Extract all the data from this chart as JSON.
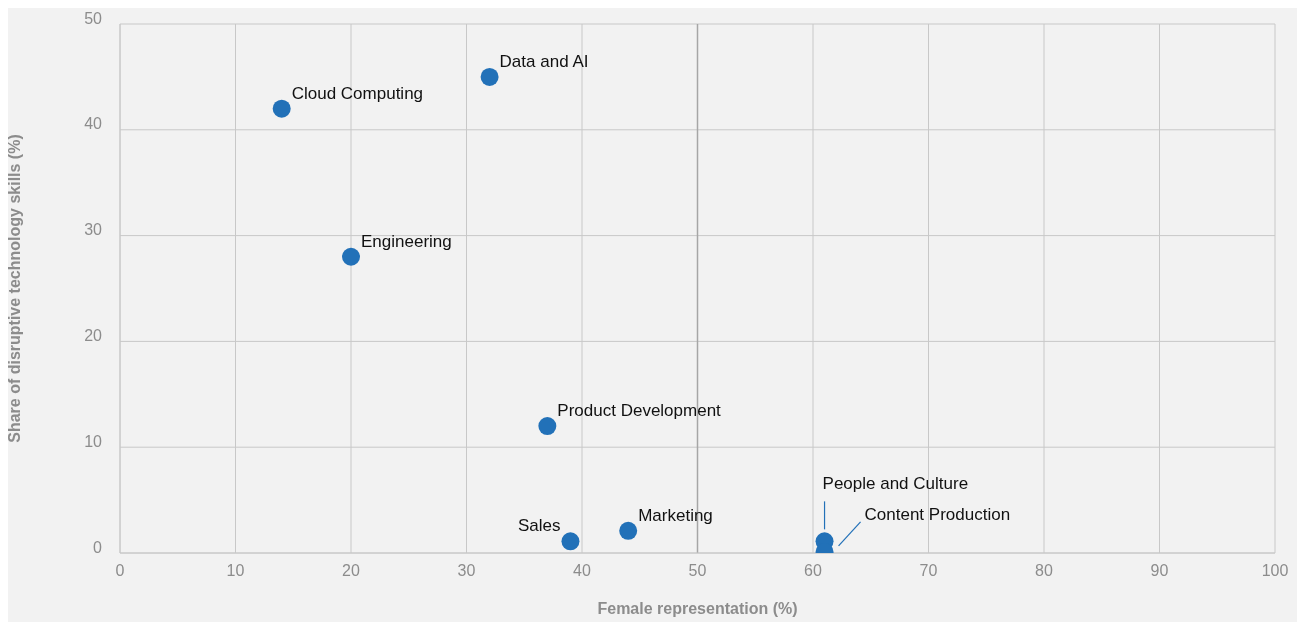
{
  "chart_data": {
    "type": "scatter",
    "xlabel": "Female representation (%)",
    "ylabel": "Share of disruptive technology skills (%)",
    "x": [
      14,
      32,
      20,
      37,
      39,
      44,
      61,
      61
    ],
    "series": [
      {
        "color": "#2271b8",
        "values": [
          42,
          45,
          28,
          12,
          1.1,
          2.1,
          1.1,
          0.1
        ]
      }
    ],
    "xlim": [
      0,
      100
    ],
    "xticks": [
      0,
      10,
      20,
      30,
      40,
      50,
      60,
      70,
      80,
      90,
      100
    ],
    "ylim": [
      0,
      50
    ],
    "yticks": [
      0,
      10,
      20,
      30,
      40,
      50
    ],
    "grid": true,
    "marker": "circle",
    "legend": false,
    "ref_lines": [
      {
        "axis": "x",
        "value": 50,
        "color": "#a6a6a6"
      }
    ],
    "annotations": [
      {
        "text": "Cloud Computing",
        "x": 14,
        "y": 42
      },
      {
        "text": "Data and AI",
        "x": 32,
        "y": 45
      },
      {
        "text": "Engineering",
        "x": 20,
        "y": 28
      },
      {
        "text": "Product Development",
        "x": 37,
        "y": 12
      },
      {
        "text": "Sales",
        "x": 39,
        "y": 1.1
      },
      {
        "text": "Marketing",
        "x": 44,
        "y": 2.1
      },
      {
        "text": "People and Culture",
        "x": 61,
        "y": 1.1
      },
      {
        "text": "Content Production",
        "x": 61,
        "y": 0.1
      }
    ]
  }
}
